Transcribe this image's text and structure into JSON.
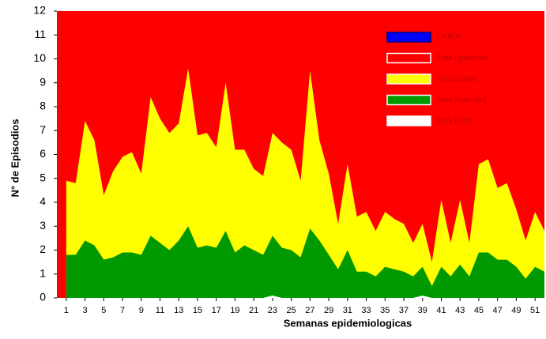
{
  "chart_data": {
    "type": "area",
    "xlabel": "Semanas epidemiologicas",
    "ylabel": "N° de Episodios",
    "x": [
      1,
      2,
      3,
      4,
      5,
      6,
      7,
      8,
      9,
      10,
      11,
      12,
      13,
      14,
      15,
      16,
      17,
      18,
      19,
      20,
      21,
      22,
      23,
      24,
      25,
      26,
      27,
      28,
      29,
      30,
      31,
      32,
      33,
      34,
      35,
      36,
      37,
      38,
      39,
      40,
      41,
      42,
      43,
      44,
      45,
      46,
      47,
      48,
      49,
      50,
      51,
      52
    ],
    "series": [
      {
        "name": "CASOS",
        "color": "#0000ff",
        "values": [
          null,
          null,
          null,
          null,
          null,
          null,
          null,
          null,
          null,
          null,
          null,
          null,
          null,
          null,
          null,
          null,
          null,
          null,
          null,
          null,
          null,
          null,
          null,
          null,
          null,
          null,
          null,
          null,
          null,
          null,
          null,
          null,
          null,
          null,
          null,
          null,
          null,
          null,
          null,
          null,
          null,
          null,
          null,
          null,
          null,
          null,
          null,
          null,
          null,
          null,
          null,
          null
        ]
      },
      {
        "name": "Zona Epidémica",
        "color": "#ff0000",
        "fill_to_top": true
      },
      {
        "name": "Zona Alarma",
        "color": "#ffff00",
        "values": [
          4.9,
          4.8,
          7.4,
          6.6,
          4.3,
          5.3,
          5.9,
          6.1,
          5.2,
          8.4,
          7.5,
          6.9,
          7.3,
          9.6,
          6.8,
          6.9,
          6.3,
          9.0,
          6.2,
          6.2,
          5.4,
          5.1,
          6.9,
          6.5,
          6.2,
          4.9,
          9.5,
          6.6,
          5.2,
          3.1,
          5.6,
          3.4,
          3.6,
          2.8,
          3.6,
          3.3,
          3.1,
          2.3,
          3.1,
          1.5,
          4.1,
          2.3,
          4.1,
          2.3,
          5.6,
          5.8,
          4.6,
          4.8,
          3.7,
          2.4,
          3.6,
          2.8
        ]
      },
      {
        "name": "Zona Seguridad",
        "color": "#009900",
        "values": [
          1.8,
          1.8,
          2.4,
          2.2,
          1.6,
          1.7,
          1.9,
          1.9,
          1.8,
          2.6,
          2.3,
          2.0,
          2.4,
          3.0,
          2.1,
          2.2,
          2.1,
          2.8,
          1.9,
          2.2,
          2.0,
          1.8,
          2.6,
          2.1,
          2.0,
          1.7,
          2.9,
          2.4,
          1.8,
          1.2,
          2.0,
          1.1,
          1.1,
          0.9,
          1.3,
          1.2,
          1.1,
          0.9,
          1.3,
          0.5,
          1.3,
          0.9,
          1.4,
          0.9,
          1.9,
          1.9,
          1.6,
          1.6,
          1.3,
          0.8,
          1.3,
          1.1
        ]
      },
      {
        "name": "Zona Éxito",
        "color": "#ffffff",
        "values": [
          0,
          0,
          0,
          0,
          0,
          0,
          0,
          0,
          0,
          0,
          0,
          0,
          0,
          0,
          0,
          0,
          0,
          0,
          0,
          0,
          0,
          0,
          0.1,
          0,
          0,
          0,
          0,
          0,
          0,
          0,
          0,
          0,
          0,
          0,
          0,
          0,
          0,
          0,
          0.1,
          0,
          0,
          0,
          0,
          0,
          0,
          0,
          0,
          0,
          0,
          0,
          0,
          0
        ]
      }
    ],
    "xlim": [
      0,
      52
    ],
    "xticks": [
      1,
      3,
      5,
      7,
      9,
      11,
      13,
      15,
      17,
      19,
      21,
      23,
      25,
      27,
      29,
      31,
      33,
      35,
      37,
      39,
      41,
      43,
      45,
      47,
      49,
      51
    ],
    "ylim": [
      0,
      12
    ],
    "yticks": [
      0,
      1,
      2,
      3,
      4,
      5,
      6,
      7,
      8,
      9,
      10,
      11,
      12
    ]
  }
}
